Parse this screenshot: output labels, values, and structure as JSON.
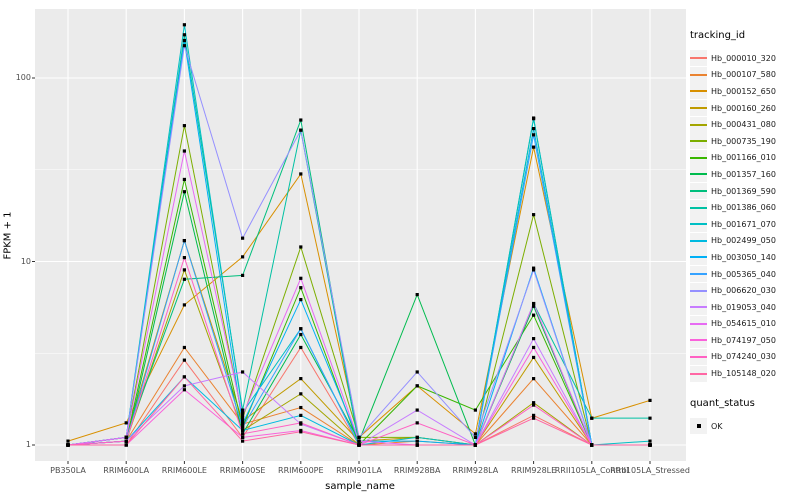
{
  "chart_data": {
    "type": "line",
    "title": "",
    "xlabel": "sample_name",
    "ylabel": "FPKM + 1",
    "y_scale": "log10",
    "y_ticks": [
      1,
      10,
      100
    ],
    "y_minor_ticks": [
      3.162,
      31.623
    ],
    "ylim": [
      1,
      235
    ],
    "grid": "on",
    "legend_position": "right",
    "panel_bg": "#EBEBEB",
    "grid_color": "#FFFFFF",
    "tick_text_color": "#4D4D4D",
    "point_color": "#000000",
    "point_shape": "square",
    "legend_key_bg": "#F2F2F2",
    "categories": [
      "PB350LA",
      "RRIM600LA",
      "RRIM600LE",
      "RRIM600SE",
      "RRIM600PE",
      "RRIM901LA",
      "RRIM928BA",
      "RRIM928LA",
      "RRIM928LE",
      "RRII105LA_Control",
      "RRII105LA_Stressed"
    ],
    "series": [
      {
        "name": "Hb_000010_320",
        "color": "#F8766D",
        "values": [
          1.0,
          1.0,
          2.9,
          1.1,
          3.4,
          1.0,
          1.0,
          1.0,
          1.45,
          1.0,
          1.0
        ]
      },
      {
        "name": "Hb_000107_580",
        "color": "#EA8331",
        "values": [
          1.0,
          1.05,
          3.4,
          1.3,
          1.6,
          1.0,
          1.05,
          1.0,
          2.3,
          1.0,
          1.0
        ]
      },
      {
        "name": "Hb_000152_650",
        "color": "#D89000",
        "values": [
          1.05,
          1.32,
          5.8,
          10.6,
          30,
          1.1,
          2.1,
          1.15,
          42,
          1.4,
          1.75
        ]
      },
      {
        "name": "Hb_000160_260",
        "color": "#C09B00",
        "values": [
          1.0,
          1.1,
          13,
          1.35,
          2.3,
          1.05,
          1.1,
          1.0,
          3.0,
          1.0,
          1.0
        ]
      },
      {
        "name": "Hb_000431_080",
        "color": "#A3A500",
        "values": [
          1.0,
          1.05,
          9.0,
          1.2,
          1.9,
          1.0,
          1.0,
          1.0,
          1.7,
          1.0,
          1.0
        ]
      },
      {
        "name": "Hb_000735_190",
        "color": "#7CAE00",
        "values": [
          1.0,
          1.1,
          55,
          1.4,
          12,
          1.1,
          1.1,
          1.0,
          18,
          1.0,
          1.0
        ]
      },
      {
        "name": "Hb_001166_010",
        "color": "#39B600",
        "values": [
          1.0,
          1.05,
          28,
          1.25,
          7.2,
          1.0,
          2.1,
          1.55,
          5.1,
          1.0,
          1.0
        ]
      },
      {
        "name": "Hb_001357_160",
        "color": "#00BB4E",
        "values": [
          1.0,
          1.0,
          24,
          1.15,
          4.0,
          1.05,
          6.6,
          1.0,
          5.7,
          1.0,
          1.0
        ]
      },
      {
        "name": "Hb_001369_590",
        "color": "#00BF7D",
        "values": [
          1.0,
          1.1,
          8.0,
          8.4,
          59,
          1.0,
          1.0,
          1.0,
          60,
          1.0,
          1.0
        ]
      },
      {
        "name": "Hb_001386_060",
        "color": "#00C1A3",
        "values": [
          1.0,
          1.1,
          172,
          1.55,
          52,
          1.0,
          1.0,
          1.0,
          5.9,
          1.4,
          1.4
        ]
      },
      {
        "name": "Hb_001671_070",
        "color": "#00BFC4",
        "values": [
          1.0,
          1.1,
          195,
          1.5,
          4.3,
          1.0,
          1.1,
          1.0,
          60.5,
          1.0,
          1.05
        ]
      },
      {
        "name": "Hb_002499_050",
        "color": "#00BAE0",
        "values": [
          1.0,
          1.05,
          2.35,
          1.2,
          1.45,
          1.0,
          1.0,
          1.0,
          53,
          1.0,
          1.0
        ]
      },
      {
        "name": "Hb_003050_140",
        "color": "#00B0F6",
        "values": [
          1.0,
          1.1,
          160,
          1.3,
          6.2,
          1.05,
          1.05,
          1.0,
          9.2,
          1.0,
          1.0
        ]
      },
      {
        "name": "Hb_005365_040",
        "color": "#35A2FF",
        "values": [
          1.0,
          1.05,
          13,
          1.25,
          4.3,
          1.0,
          1.0,
          1.0,
          49,
          1.0,
          1.0
        ]
      },
      {
        "name": "Hb_006620_030",
        "color": "#9590FF",
        "values": [
          1.0,
          1.1,
          150,
          13.4,
          52,
          1.1,
          2.5,
          1.1,
          9.0,
          1.0,
          1.0
        ]
      },
      {
        "name": "Hb_019053_040",
        "color": "#C77CFF",
        "values": [
          1.0,
          1.05,
          2.1,
          2.5,
          1.3,
          1.0,
          1.55,
          1.0,
          3.8,
          1.0,
          1.0
        ]
      },
      {
        "name": "Hb_054615_010",
        "color": "#E76BF3",
        "values": [
          1.0,
          1.1,
          40,
          1.45,
          8.1,
          1.05,
          1.0,
          1.0,
          5.9,
          1.0,
          1.0
        ]
      },
      {
        "name": "Hb_074197_050",
        "color": "#FA62DB",
        "values": [
          1.0,
          1.0,
          2.0,
          1.1,
          1.2,
          1.0,
          1.0,
          1.0,
          3.4,
          1.0,
          1.0
        ]
      },
      {
        "name": "Hb_074240_030",
        "color": "#FF61C3",
        "values": [
          1.0,
          1.05,
          10.5,
          1.15,
          1.32,
          1.0,
          1.32,
          1.0,
          1.65,
          1.0,
          1.0
        ]
      },
      {
        "name": "Hb_105148_020",
        "color": "#FF67A4",
        "values": [
          1.0,
          1.0,
          2.35,
          1.05,
          1.18,
          1.0,
          1.0,
          1.0,
          1.4,
          1.0,
          1.0
        ]
      }
    ],
    "legend": {
      "color_title": "tracking_id",
      "shape_title": "quant_status",
      "shape_items": [
        {
          "label": "OK"
        }
      ]
    }
  }
}
